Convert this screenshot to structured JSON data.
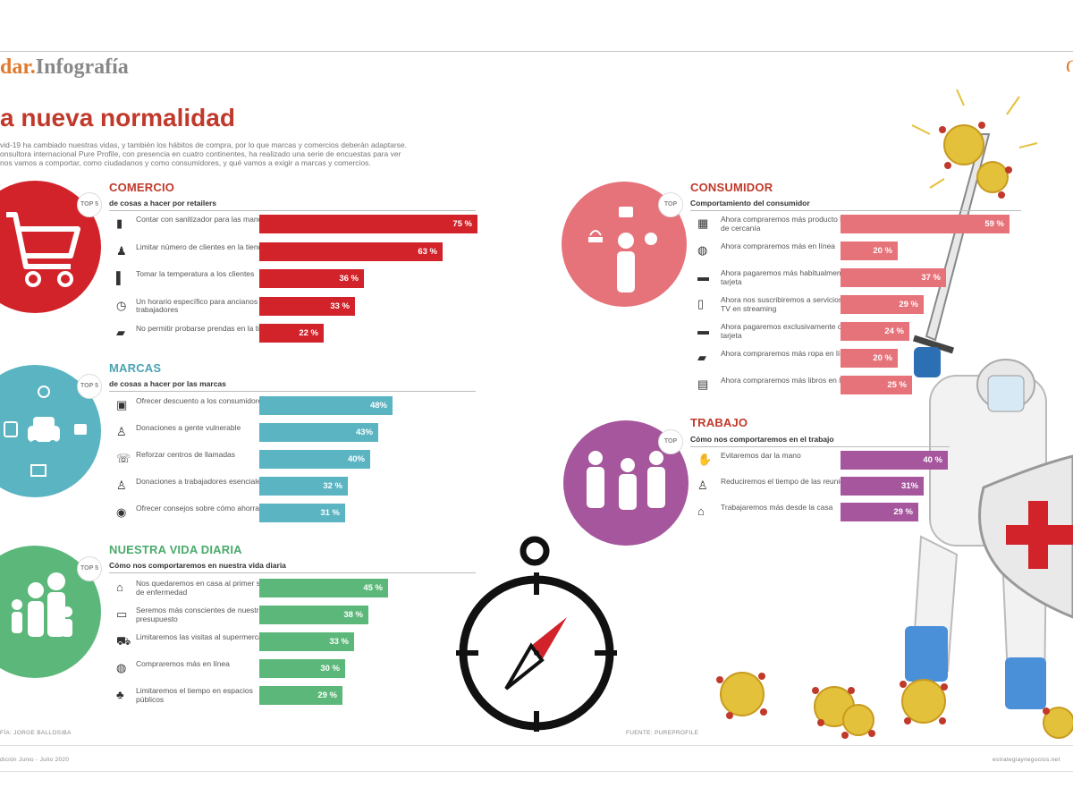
{
  "header": {
    "brand_part1": "dar.",
    "brand_part2": "Infografía",
    "title": "a nueva normalidad",
    "intro_line1": "vid-19 ha cambiado nuestras vidas, y también los hábitos de compra, por lo que marcas y comercios deberán adaptarse.",
    "intro_line2": "onsultora internacional Pure Profile, con presencia en cuatro continentes, ha realizado una serie de encuestas para ver",
    "intro_line3": "nos vamos a comportar, como ciudadanos y como consumidores, y qué vamos a exigir a marcas y comercios."
  },
  "colors": {
    "comercio": "#d2232a",
    "marcas": "#5ab4c2",
    "vida": "#5cb87a",
    "consumidor": "#e6727a",
    "trabajo": "#a5569c",
    "comercio_title": "#c0392b",
    "marcas_title": "#4aa3b3",
    "vida_title": "#4aaa6b",
    "consumidor_title": "#c0392b",
    "trabajo_title": "#c0392b"
  },
  "badges": {
    "top5": "TOP 5",
    "top": "TOP"
  },
  "chart_data": [
    {
      "type": "bar",
      "title": "COMERCIO",
      "subtitle": "de cosas a hacer por retailers",
      "icons": [
        "hand-sanitizer-icon",
        "people-limit-icon",
        "thermometer-icon",
        "clock-icon",
        "clothes-icon"
      ],
      "categories": [
        "Contar con sanitizador para las manos",
        "Limitar número de clientes en la tienda",
        "Tomar la temperatura a los clientes",
        "Un horario específico para ancianos y trabajadores",
        "No permitir probarse prendas en la tienda"
      ],
      "values": [
        75,
        63,
        36,
        33,
        22
      ],
      "value_labels": [
        "75 %",
        "63 %",
        "36 %",
        "33 %",
        "22 %"
      ]
    },
    {
      "type": "bar",
      "title": "MARCAS",
      "subtitle": "de cosas a hacer por las marcas",
      "icons": [
        "lock-icon",
        "person-icon",
        "phone-icon",
        "worker-icon",
        "piggy-bank-icon"
      ],
      "categories": [
        "Ofrecer descuento a los consumidores",
        "Donaciones a gente vulnerable",
        "Reforzar centros de llamadas",
        "Donaciones a trabajadores esenciales",
        "Ofrecer consejos sobre cómo ahorrar"
      ],
      "values": [
        48,
        43,
        40,
        32,
        31
      ],
      "value_labels": [
        "48%",
        "43%",
        "40%",
        "32 %",
        "31 %"
      ]
    },
    {
      "type": "bar",
      "title": "NUESTRA VIDA DIARIA",
      "subtitle": "Cómo nos comportaremos en nuestra vida diaria",
      "icons": [
        "home-icon",
        "wallet-icon",
        "shopping-cart-icon",
        "globe-icon",
        "tree-icon"
      ],
      "categories": [
        "Nos quedaremos en casa al primer signo de enfermedad",
        "Seremos más conscientes de nuestro presupuesto",
        "Limitaremos las visitas al supermercado",
        "Compraremos más en línea",
        "Limitaremos el tiempo en espacios públicos"
      ],
      "values": [
        45,
        38,
        33,
        30,
        29
      ],
      "value_labels": [
        "45 %",
        "38 %",
        "33 %",
        "30 %",
        "29 %"
      ]
    },
    {
      "type": "bar",
      "title": "CONSUMIDOR",
      "subtitle": "Comportamiento del consumidor",
      "icons": [
        "store-icon",
        "globe-icon",
        "card-icon",
        "tv-icon",
        "card-icon",
        "clothes-icon",
        "book-icon"
      ],
      "categories": [
        "Ahora compraremos más producto local y de cercanía",
        "Ahora compraremos más en línea",
        "Ahora pagaremos más habitualmente con tarjeta",
        "Ahora nos suscribiremos a servicios de TV en streaming",
        "Ahora pagaremos exclusivamente con tarjeta",
        "Ahora compraremos más ropa en línea",
        "Ahora compraremos más libros en línea"
      ],
      "values": [
        59,
        20,
        37,
        29,
        24,
        20,
        25
      ],
      "value_labels": [
        "59 %",
        "20 %",
        "37 %",
        "29 %",
        "24 %",
        "20 %",
        "25 %"
      ]
    },
    {
      "type": "bar",
      "title": "TRABAJO",
      "subtitle": "Cómo nos comportaremos en el trabajo",
      "icons": [
        "handshake-icon",
        "person-icon",
        "home-office-icon"
      ],
      "categories": [
        "Evitaremos dar la mano",
        "Reduciremos el tiempo de las reuniones",
        "Trabajaremos más desde la casa"
      ],
      "values": [
        40,
        31,
        29
      ],
      "value_labels": [
        "40 %",
        "31%",
        "29 %"
      ]
    }
  ],
  "footer": {
    "credit": "FÍA: JORGE BALLOSIBA",
    "source": "FUENTE: PUREPROFILE",
    "edition": "dición Junio - Julio 2020",
    "site": "estrategiaynegocios.net"
  }
}
